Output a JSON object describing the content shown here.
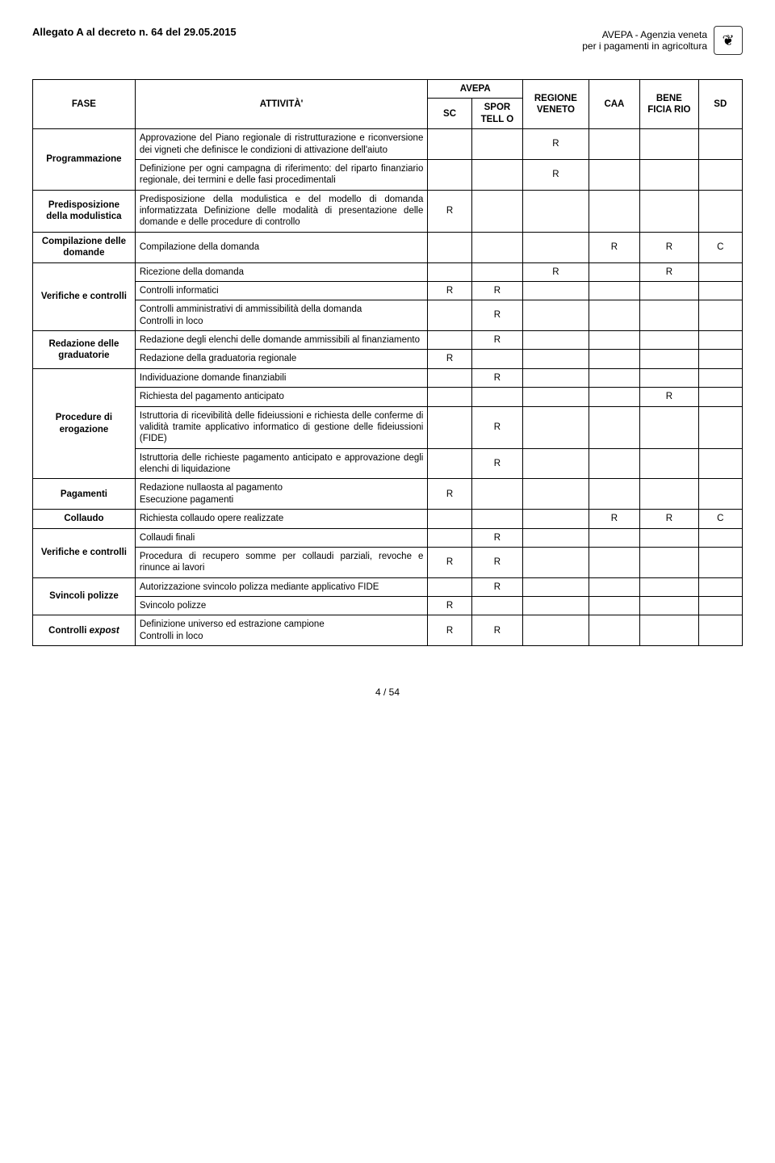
{
  "header": {
    "left": "Allegato A al decreto n. 64 del 29.05.2015",
    "right_line1": "AVEPA - Agenzia veneta",
    "right_line2": "per i pagamenti in agricoltura",
    "logo_glyph": "❦"
  },
  "table": {
    "head": {
      "fase": "FASE",
      "attivita": "ATTIVITÀ'",
      "avepa": "AVEPA",
      "sc": "SC",
      "spor": "SPOR TELL O",
      "regione": "REGIONE VENETO",
      "caa": "CAA",
      "bene": "BENE FICIA RIO",
      "sd": "SD"
    },
    "rows": [
      {
        "fase": "Programmazione",
        "fase_rowspan": 2,
        "att": "Approvazione del Piano regionale di ristrutturazione e riconversione dei vigneti che definisce le condizioni di attivazione dell'aiuto",
        "sc": "",
        "spor": "",
        "reg": "R",
        "caa": "",
        "bene": "",
        "sd": ""
      },
      {
        "att": "Definizione per ogni campagna di riferimento: del riparto finanziario regionale, dei termini e delle fasi procedimentali",
        "sc": "",
        "spor": "",
        "reg": "R",
        "caa": "",
        "bene": "",
        "sd": ""
      },
      {
        "fase": "Predisposizione della modulistica",
        "fase_rowspan": 1,
        "att": "Predisposizione della modulistica e del modello di domanda informatizzata Definizione delle modalità di presentazione delle domande e delle procedure di controllo",
        "sc": "R",
        "spor": "",
        "reg": "",
        "caa": "",
        "bene": "",
        "sd": ""
      },
      {
        "fase": "Compilazione delle domande",
        "fase_rowspan": 1,
        "att": "Compilazione della domanda",
        "sc": "",
        "spor": "",
        "reg": "",
        "caa": "R",
        "bene": "R",
        "sd": "C"
      },
      {
        "fase": "Verifiche e controlli",
        "fase_rowspan": 3,
        "att": "Ricezione della domanda",
        "sc": "",
        "spor": "",
        "reg": "R",
        "caa": "",
        "bene": "R",
        "sd": ""
      },
      {
        "att": "Controlli informatici",
        "sc": "R",
        "spor": "R",
        "reg": "",
        "caa": "",
        "bene": "",
        "sd": ""
      },
      {
        "att": "Controlli amministrativi di ammissibilità della domanda\nControlli in loco",
        "sc": "",
        "spor": "R",
        "reg": "",
        "caa": "",
        "bene": "",
        "sd": ""
      },
      {
        "fase": "Redazione delle graduatorie",
        "fase_rowspan": 2,
        "att": "Redazione degli elenchi delle domande ammissibili al finanziamento",
        "sc": "",
        "spor": "R",
        "reg": "",
        "caa": "",
        "bene": "",
        "sd": ""
      },
      {
        "att": "Redazione della graduatoria regionale",
        "sc": "R",
        "spor": "",
        "reg": "",
        "caa": "",
        "bene": "",
        "sd": ""
      },
      {
        "fase": "Procedure di erogazione",
        "fase_rowspan": 4,
        "att": "Individuazione domande finanziabili",
        "sc": "",
        "spor": "R",
        "reg": "",
        "caa": "",
        "bene": "",
        "sd": ""
      },
      {
        "att": "Richiesta del pagamento anticipato",
        "sc": "",
        "spor": "",
        "reg": "",
        "caa": "",
        "bene": "R",
        "sd": ""
      },
      {
        "att": "Istruttoria di ricevibilità delle fideiussioni e richiesta delle conferme di validità tramite applicativo informatico di gestione delle fideiussioni (FIDE)",
        "sc": "",
        "spor": "R",
        "reg": "",
        "caa": "",
        "bene": "",
        "sd": ""
      },
      {
        "att": "Istruttoria delle richieste pagamento anticipato e approvazione degli elenchi di liquidazione",
        "sc": "",
        "spor": "R",
        "reg": "",
        "caa": "",
        "bene": "",
        "sd": ""
      },
      {
        "fase": "Pagamenti",
        "fase_rowspan": 1,
        "att": "Redazione nullaosta al pagamento\nEsecuzione pagamenti",
        "sc": "R",
        "spor": "",
        "reg": "",
        "caa": "",
        "bene": "",
        "sd": ""
      },
      {
        "fase": "Collaudo",
        "fase_rowspan": 1,
        "att": "Richiesta collaudo opere realizzate",
        "sc": "",
        "spor": "",
        "reg": "",
        "caa": "R",
        "bene": "R",
        "sd": "C"
      },
      {
        "fase": "Verifiche e controlli",
        "fase_rowspan": 2,
        "att": "Collaudi finali",
        "sc": "",
        "spor": "R",
        "reg": "",
        "caa": "",
        "bene": "",
        "sd": ""
      },
      {
        "att": "Procedura di recupero somme per collaudi parziali, revoche e rinunce ai lavori",
        "sc": "R",
        "spor": "R",
        "reg": "",
        "caa": "",
        "bene": "",
        "sd": ""
      },
      {
        "fase": "Svincoli polizze",
        "fase_rowspan": 2,
        "att": "Autorizzazione svincolo polizza mediante applicativo FIDE",
        "sc": "",
        "spor": "R",
        "reg": "",
        "caa": "",
        "bene": "",
        "sd": ""
      },
      {
        "att": "Svincolo polizze",
        "sc": "R",
        "spor": "",
        "reg": "",
        "caa": "",
        "bene": "",
        "sd": ""
      },
      {
        "fase": "Controlli expost",
        "fase_rowspan": 1,
        "att": "Definizione universo ed estrazione campione\nControlli in loco",
        "sc": "R",
        "spor": "R",
        "reg": "",
        "caa": "",
        "bene": "",
        "sd": ""
      }
    ]
  },
  "footer": "4 / 54"
}
